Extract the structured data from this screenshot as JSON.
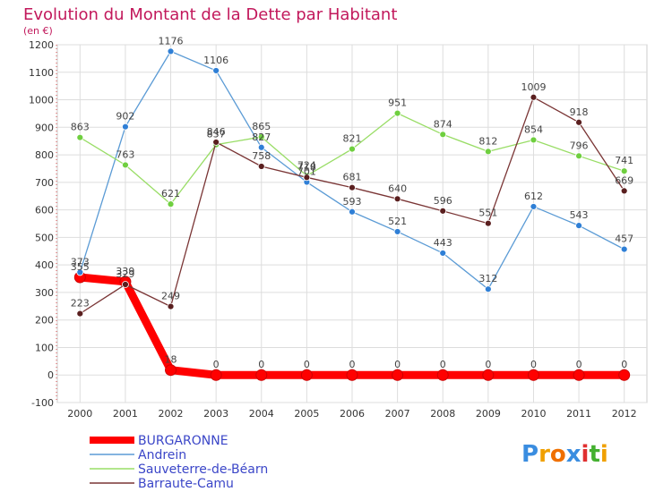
{
  "chart_data": {
    "type": "line",
    "title": "Evolution du Montant de la Dette par Habitant",
    "subtitle": "(en €)",
    "xlabel": "",
    "ylabel": "",
    "x": [
      "2000",
      "2001",
      "2002",
      "2003",
      "2004",
      "2005",
      "2006",
      "2007",
      "2008",
      "2009",
      "2010",
      "2011",
      "2012"
    ],
    "ylim": [
      -100,
      1200
    ],
    "yticks": [
      -100,
      0,
      100,
      200,
      300,
      400,
      500,
      600,
      700,
      800,
      900,
      1000,
      1100,
      1200
    ],
    "grid": true,
    "legend_position": "bottom-left",
    "series": [
      {
        "name": "BURGARONNE",
        "color": "#ff0000",
        "marker_color": "#ff0000",
        "values": [
          355,
          339,
          18,
          0,
          0,
          0,
          0,
          0,
          0,
          0,
          0,
          0,
          0
        ]
      },
      {
        "name": "Andrein",
        "color": "#5b9bd5",
        "marker_color": "#2f7fd6",
        "values": [
          373,
          902,
          1176,
          1106,
          827,
          701,
          593,
          521,
          443,
          312,
          612,
          543,
          457
        ]
      },
      {
        "name": "Sauveterre-de-Béarn",
        "color": "#99dd66",
        "marker_color": "#6fcf3f",
        "values": [
          863,
          763,
          621,
          837,
          865,
          724,
          821,
          951,
          874,
          812,
          854,
          796,
          741
        ]
      },
      {
        "name": "Barraute-Camu",
        "color": "#7a3535",
        "marker_color": "#5a1f1f",
        "values": [
          223,
          329,
          249,
          846,
          758,
          718,
          681,
          640,
          596,
          551,
          1009,
          918,
          669
        ]
      }
    ]
  },
  "logo": {
    "text": "Proxiti",
    "letter_colors": [
      "#3a8de0",
      "#f0a000",
      "#f07000",
      "#3a8de0",
      "#e03030",
      "#44b030",
      "#f0a000"
    ]
  }
}
